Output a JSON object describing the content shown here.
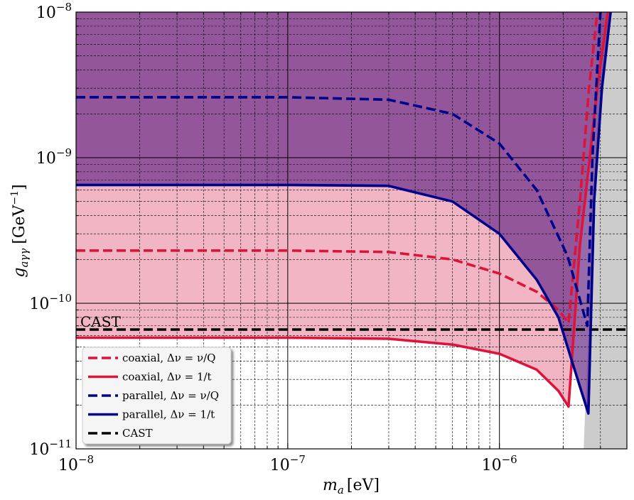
{
  "chart_data": {
    "type": "line",
    "xscale": "log",
    "yscale": "log",
    "xlim": [
      1e-08,
      4e-06
    ],
    "ylim": [
      1e-11,
      1e-08
    ],
    "xlabel_main": "m",
    "xlabel_sub": "a",
    "xlabel_unit": "[eV]",
    "ylabel_main": "g",
    "ylabel_sub": "aγγ",
    "ylabel_unit": "[GeV",
    "ylabel_unit_exp": "−1",
    "ylabel_unit_close": "]",
    "x_ticks": [
      {
        "value": 1e-08,
        "base": "10",
        "exp": "−8"
      },
      {
        "value": 1e-07,
        "base": "10",
        "exp": "−7"
      },
      {
        "value": 1e-06,
        "base": "10",
        "exp": "−6"
      }
    ],
    "y_ticks": [
      {
        "value": 1e-11,
        "base": "10",
        "exp": "−11"
      },
      {
        "value": 1e-10,
        "base": "10",
        "exp": "−10"
      },
      {
        "value": 1e-09,
        "base": "10",
        "exp": "−9"
      },
      {
        "value": 1e-08,
        "base": "10",
        "exp": "−8"
      }
    ],
    "grid": true,
    "legend_position": "lower-left",
    "excluded_region": {
      "color": "#cccccc",
      "points": [
        [
          2.5e-06,
          1e-11
        ],
        [
          3e-06,
          1e-08
        ],
        [
          4e-06,
          1e-08
        ],
        [
          4e-06,
          1e-11
        ]
      ]
    },
    "series": [
      {
        "name": "coaxial, Δν = ν/Q",
        "legend_label": "coaxial,  Δν = ν/Q",
        "color": "#dc143c",
        "style": "dashed",
        "fill": null,
        "points": [
          [
            1e-08,
            2.3e-10
          ],
          [
            1e-07,
            2.3e-10
          ],
          [
            3e-07,
            2.25e-10
          ],
          [
            6e-07,
            2e-10
          ],
          [
            1e-06,
            1.6e-10
          ],
          [
            1.5e-06,
            1.2e-10
          ],
          [
            1.9e-06,
            9e-11
          ],
          [
            2.12e-06,
            7.3e-11
          ],
          [
            2.4e-06,
            5e-10
          ],
          [
            2.65e-06,
            3e-09
          ],
          [
            2.9e-06,
            1e-08
          ]
        ]
      },
      {
        "name": "coaxial, Δν = 1/t",
        "legend_label": "coaxial,  Δν = 1/t",
        "color": "#dc143c",
        "style": "solid",
        "fill": "rgba(232,120,145,0.55)",
        "points": [
          [
            1e-08,
            5.8e-11
          ],
          [
            1e-07,
            5.8e-11
          ],
          [
            3e-07,
            5.7e-11
          ],
          [
            6e-07,
            5.2e-11
          ],
          [
            1e-06,
            4.5e-11
          ],
          [
            1.5e-06,
            3.5e-11
          ],
          [
            1.9e-06,
            2.5e-11
          ],
          [
            2.12e-06,
            1.95e-11
          ],
          [
            2.4e-06,
            2.5e-10
          ],
          [
            2.65e-06,
            9e-10
          ],
          [
            2.9e-06,
            3e-09
          ],
          [
            3.25e-06,
            1e-08
          ]
        ]
      },
      {
        "name": "parallel, Δν = ν/Q",
        "legend_label": "parallel, Δν = ν/Q",
        "color": "#00008b",
        "style": "dashed",
        "fill": null,
        "points": [
          [
            1e-08,
            2.6e-09
          ],
          [
            1e-07,
            2.6e-09
          ],
          [
            3e-07,
            2.5e-09
          ],
          [
            6e-07,
            2e-09
          ],
          [
            1e-06,
            1.25e-09
          ],
          [
            1.5e-06,
            6e-10
          ],
          [
            2.1e-06,
            2.1e-10
          ],
          [
            2.6e-06,
            7e-11
          ],
          [
            2.75e-06,
            1e-09
          ],
          [
            3e-06,
            1e-08
          ]
        ]
      },
      {
        "name": "parallel, Δν = 1/t",
        "legend_label": "parallel, Δν = 1/t",
        "color": "#00008b",
        "style": "solid",
        "fill": "rgba(110,50,140,0.72)",
        "points": [
          [
            1e-08,
            6.5e-10
          ],
          [
            1e-07,
            6.5e-10
          ],
          [
            3e-07,
            6.4e-10
          ],
          [
            6e-07,
            5e-10
          ],
          [
            1e-06,
            3e-10
          ],
          [
            1.5e-06,
            1.45e-10
          ],
          [
            1.9e-06,
            8e-11
          ],
          [
            2.2e-06,
            4e-11
          ],
          [
            2.63e-06,
            1.75e-11
          ],
          [
            2.8e-06,
            5e-10
          ],
          [
            3.05e-06,
            3e-09
          ],
          [
            3.35e-06,
            1e-08
          ]
        ]
      },
      {
        "name": "CAST",
        "legend_label": "CAST",
        "color": "#000000",
        "style": "dashed",
        "fill": null,
        "points": [
          [
            1e-08,
            6.6e-11
          ],
          [
            4e-06,
            6.6e-11
          ]
        ]
      }
    ],
    "annotations": [
      {
        "text": "CAST",
        "x": 1.05e-08,
        "y": 7e-11
      }
    ]
  }
}
